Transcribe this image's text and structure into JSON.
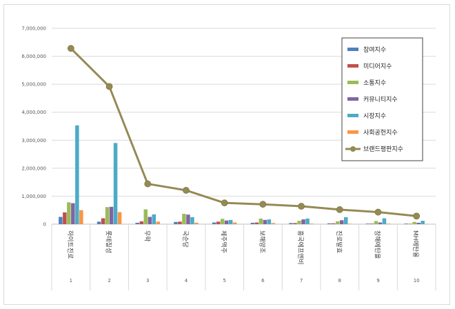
{
  "chart_data": {
    "type": "bar",
    "categories": [
      "1",
      "2",
      "3",
      "4",
      "5",
      "6",
      "7",
      "8",
      "9",
      "10"
    ],
    "category_names": [
      "하이트진로",
      "롯데칠성",
      "무학",
      "국순당",
      "제주맥주",
      "보해양조",
      "흥국에프엔비",
      "진로발효",
      "창해에탄올",
      "MH에탄올"
    ],
    "y_ticks": [
      "0",
      "1,000,000",
      "2,000,000",
      "3,000,000",
      "4,000,000",
      "5,000,000",
      "6,000,000",
      "7,000,000"
    ],
    "ylim": [
      0,
      7000000
    ],
    "grid": true,
    "legend_position": "right",
    "series": [
      {
        "name": "참여지수",
        "type": "bar",
        "color": "#4f81bd",
        "values": [
          260000,
          90000,
          50000,
          80000,
          60000,
          50000,
          40000,
          30000,
          20000,
          20000
        ]
      },
      {
        "name": "미디어지수",
        "type": "bar",
        "color": "#c0504d",
        "values": [
          420000,
          210000,
          100000,
          90000,
          90000,
          60000,
          40000,
          30000,
          20000,
          15000
        ]
      },
      {
        "name": "소통지수",
        "type": "bar",
        "color": "#9bbb59",
        "values": [
          780000,
          610000,
          530000,
          370000,
          190000,
          200000,
          120000,
          100000,
          110000,
          80000
        ]
      },
      {
        "name": "커뮤니티지수",
        "type": "bar",
        "color": "#8064a2",
        "values": [
          750000,
          620000,
          260000,
          340000,
          130000,
          150000,
          170000,
          140000,
          60000,
          50000
        ]
      },
      {
        "name": "시장지수",
        "type": "bar",
        "color": "#4bacc6",
        "values": [
          3530000,
          2900000,
          350000,
          250000,
          150000,
          170000,
          200000,
          250000,
          210000,
          120000
        ]
      },
      {
        "name": "사회공헌지수",
        "type": "bar",
        "color": "#f79646",
        "values": [
          500000,
          430000,
          90000,
          50000,
          60000,
          40000,
          20000,
          15000,
          20000,
          10000
        ]
      },
      {
        "name": "브랜드평판지수",
        "type": "line",
        "color": "#948a54",
        "values": [
          6280000,
          4920000,
          1440000,
          1210000,
          760000,
          710000,
          640000,
          520000,
          430000,
          290000
        ]
      }
    ]
  }
}
